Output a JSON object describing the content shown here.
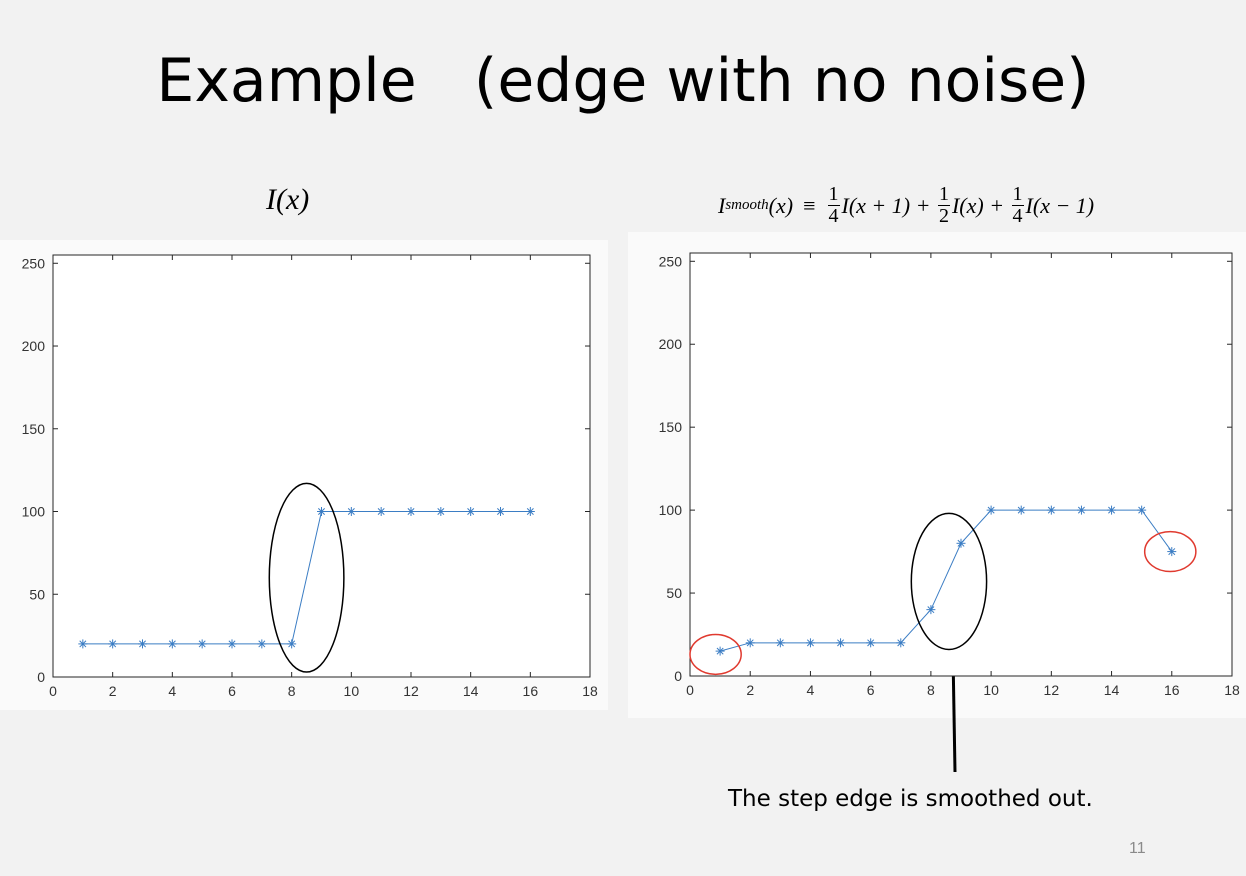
{
  "slide": {
    "title": "Example   (edge with no noise)",
    "page_number": "11",
    "annotation": "The step edge is smoothed out.",
    "left_caption": {
      "symbol": "I",
      "arg": "(x)"
    },
    "right_caption": {
      "lhs_symbol": "I",
      "lhs_sub": "smooth",
      "lhs_arg": "(x)",
      "equiv": "≡",
      "frac_num": "1",
      "frac_den_a": "4",
      "frac_den_b": "2",
      "frac_den_c": "4",
      "term_a": "I(x + 1) +",
      "term_b": "I(x) +",
      "term_c": "I(x − 1)"
    }
  },
  "colors": {
    "line": "#3b7dc4",
    "marker": "#3b7dc4",
    "highlight_black": "#000000",
    "highlight_red": "#e03a2f"
  },
  "chart_data": [
    {
      "type": "line",
      "marker": "asterisk",
      "x": [
        1,
        2,
        3,
        4,
        5,
        6,
        7,
        8,
        9,
        10,
        11,
        12,
        13,
        14,
        15,
        16
      ],
      "series": [
        {
          "values": [
            20,
            20,
            20,
            20,
            20,
            20,
            20,
            20,
            100,
            100,
            100,
            100,
            100,
            100,
            100,
            100
          ]
        }
      ],
      "xlim": [
        0,
        18
      ],
      "ylim": [
        0,
        255
      ],
      "xticks": [
        0,
        2,
        4,
        6,
        8,
        10,
        12,
        14,
        16,
        18
      ],
      "yticks": [
        0,
        50,
        100,
        150,
        200,
        250
      ],
      "grid": false,
      "highlights": [
        {
          "shape": "ellipse",
          "color": "black",
          "cx": 8.5,
          "cy": 60,
          "rx": 1.25,
          "ry": 57
        }
      ]
    },
    {
      "type": "line",
      "marker": "asterisk",
      "x": [
        1,
        2,
        3,
        4,
        5,
        6,
        7,
        8,
        9,
        10,
        11,
        12,
        13,
        14,
        15,
        16
      ],
      "series": [
        {
          "values": [
            15,
            20,
            20,
            20,
            20,
            20,
            20,
            40,
            80,
            100,
            100,
            100,
            100,
            100,
            100,
            75
          ]
        }
      ],
      "xlim": [
        0,
        18
      ],
      "ylim": [
        0,
        255
      ],
      "xticks": [
        0,
        2,
        4,
        6,
        8,
        10,
        12,
        14,
        16,
        18
      ],
      "yticks": [
        0,
        50,
        100,
        150,
        200,
        250
      ],
      "grid": false,
      "highlights": [
        {
          "shape": "ellipse",
          "color": "black",
          "cx": 8.6,
          "cy": 57,
          "rx": 1.25,
          "ry": 41
        },
        {
          "shape": "circle",
          "color": "red",
          "cx": 0.85,
          "cy": 13,
          "rx": 0.85,
          "ry": 12
        },
        {
          "shape": "circle",
          "color": "red",
          "cx": 15.95,
          "cy": 75,
          "rx": 0.85,
          "ry": 12
        }
      ]
    }
  ]
}
